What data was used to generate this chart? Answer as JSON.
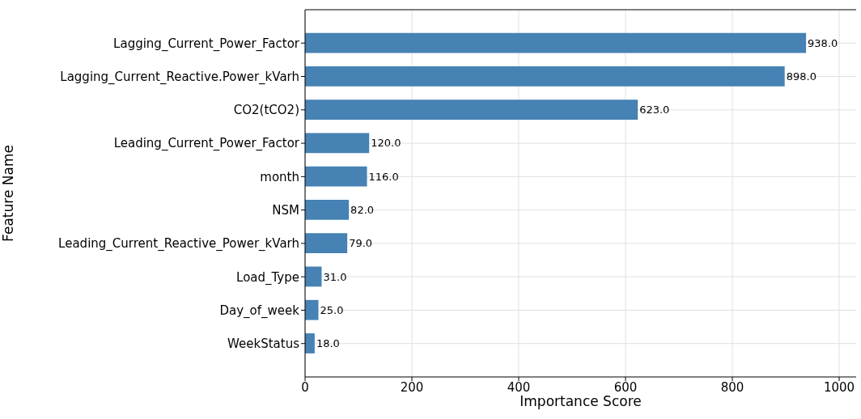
{
  "chart_data": {
    "type": "bar",
    "orientation": "horizontal",
    "xlabel": "Importance Score",
    "ylabel": "Feature Name",
    "categories": [
      "Lagging_Current_Power_Factor",
      "Lagging_Current_Reactive.Power_kVarh",
      "CO2(tCO2)",
      "Leading_Current_Power_Factor",
      "month",
      "NSM",
      "Leading_Current_Reactive_Power_kVarh",
      "Load_Type",
      "Day_of_week",
      "WeekStatus"
    ],
    "values": [
      938,
      898,
      623,
      120,
      116,
      82,
      79,
      31,
      25,
      18
    ],
    "value_labels": [
      "938.0",
      "898.0",
      "623.0",
      "120.0",
      "116.0",
      "82.0",
      "79.0",
      "31.0",
      "25.0",
      "18.0"
    ],
    "color": "#4682b4",
    "xlim": [
      0,
      1031.8
    ],
    "xticks": [
      0,
      200,
      400,
      600,
      800,
      1000
    ],
    "grid": true
  }
}
